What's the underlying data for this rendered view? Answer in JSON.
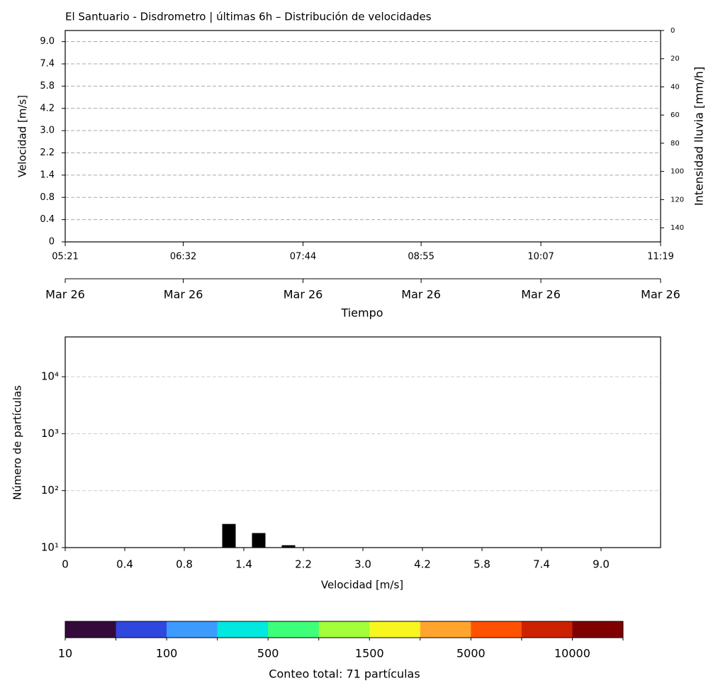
{
  "chart_data": [
    {
      "type": "heatmap",
      "title": "El Santuario - Disdrometro | últimas 6h – Distribución de velocidades",
      "ylabel": "Velocidad [m/s]",
      "y2label": "Intensidad lluvia [mm/h]",
      "xlabel": "Tiempo",
      "yticks": [
        0,
        0.4,
        0.8,
        1.4,
        2.2,
        {
          "value": 3,
          "label": "3.0"
        },
        4.2,
        5.8,
        7.4,
        {
          "value": 9,
          "label": "9.0"
        }
      ],
      "xlim": [
        321,
        679
      ],
      "xticks": [
        {
          "value": 321,
          "label": "05:21"
        },
        {
          "value": 392,
          "label": "06:32"
        },
        {
          "value": 464,
          "label": "07:44"
        },
        {
          "value": 535,
          "label": "08:55"
        },
        {
          "value": 607,
          "label": "10:07"
        },
        {
          "value": 679,
          "label": "11:19"
        }
      ],
      "x2ticks": [
        {
          "value": 321,
          "label": "Mar 26"
        },
        {
          "value": 392,
          "label": "Mar 26"
        },
        {
          "value": 464,
          "label": "Mar 26"
        },
        {
          "value": 535,
          "label": "Mar 26"
        },
        {
          "value": 607,
          "label": "Mar 26"
        },
        {
          "value": 679,
          "label": "Mar 26"
        }
      ],
      "y2lim": [
        0,
        150
      ],
      "y2_inverted": true,
      "y2ticks": [
        0,
        20,
        40,
        60,
        80,
        100,
        120,
        140
      ],
      "grid": true
    },
    {
      "type": "bar",
      "ylabel": "Número de partículas",
      "xlabel": "Velocidad [m/s]",
      "x": [
        1.25,
        1.6,
        2.0
      ],
      "values": [
        26,
        18,
        11
      ],
      "color": "#000000",
      "log_y": true,
      "ylim": [
        10,
        50000
      ],
      "yticks": [
        {
          "value": 10,
          "label": "10¹"
        },
        {
          "value": 100,
          "label": "10²"
        },
        {
          "value": 1000,
          "label": "10³"
        },
        {
          "value": 10000,
          "label": "10⁴"
        }
      ],
      "xticks": [
        0,
        0.4,
        0.8,
        1.4,
        2.2,
        {
          "value": 3,
          "label": "3.0"
        },
        4.2,
        5.8,
        7.4,
        {
          "value": 9,
          "label": "9.0"
        }
      ],
      "grid": true
    },
    {
      "type": "colorbar",
      "label": "Conteo total: 71 partículas",
      "colors": [
        "#330a3a",
        "#3047de",
        "#3d9bff",
        "#00e8e0",
        "#3dff7a",
        "#a3ff3a",
        "#f7f71f",
        "#ffa52e",
        "#ff5200",
        "#cc2200",
        "#800000"
      ],
      "ticks": [
        10,
        100,
        500,
        1500,
        5000,
        10000
      ]
    }
  ]
}
